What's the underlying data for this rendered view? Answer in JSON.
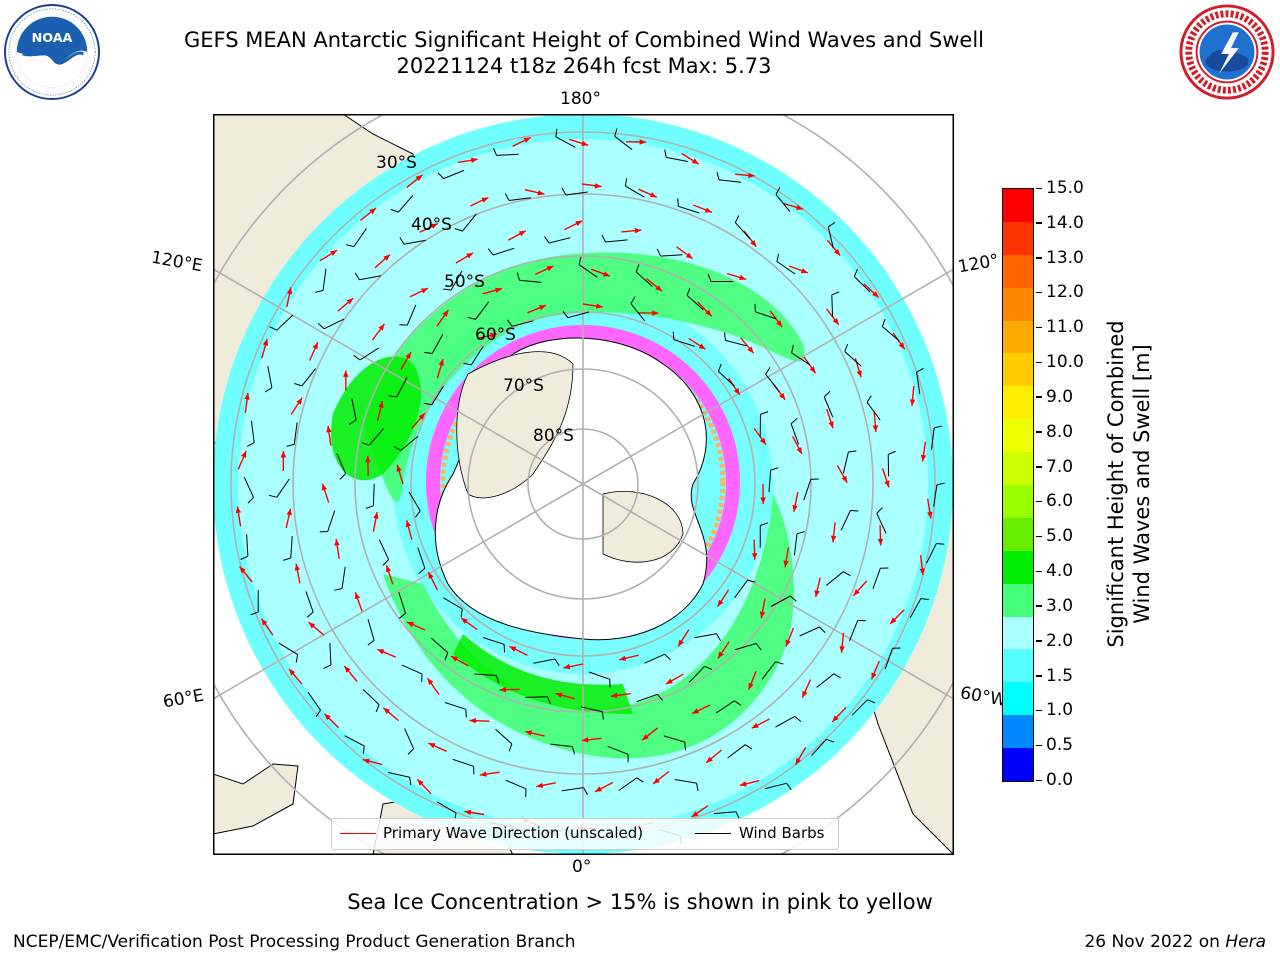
{
  "header": {
    "title_line1": "GEFS MEAN Antarctic Significant Height of Combined Wind Waves and Swell",
    "title_line2": "20221124 t18z 264h fcst   Max: 5.73"
  },
  "logos": {
    "noaa": {
      "text": "NOAA",
      "ring_text": "NATIONAL OCEANIC AND ATMOSPHERIC ADMINISTRATION · U.S. DEPARTMENT OF COMMERCE"
    },
    "nws": {
      "ring_text": "NATIONAL WEATHER SERVICE"
    }
  },
  "map": {
    "projection": "south-polar-stereographic",
    "longitude_labels": {
      "top": "180°",
      "bottom": "0°",
      "left_upper": "120°E",
      "left_lower": "60°E",
      "right_upper": "120°",
      "right_lower": "60°W"
    },
    "latitude_labels": [
      "30°S",
      "40°S",
      "50°S",
      "60°S",
      "70°S",
      "80°S"
    ],
    "land_color": "#efecdc",
    "ocean_color": "#ffffff",
    "grid_color": "#b0b0b0",
    "ice_colors": [
      "#ff66ff",
      "#e040e0",
      "#ffb060",
      "#ffe060"
    ]
  },
  "legend": {
    "wave_label": "Primary Wave Direction (unscaled)",
    "wave_color": "#ff0000",
    "barb_label": "Wind Barbs",
    "barb_color": "#000000"
  },
  "colorbar": {
    "title_line1": "Significant Height of Combined",
    "title_line2": "Wind Waves and Swell [m]",
    "ticks": [
      "15.0",
      "14.0",
      "13.0",
      "12.0",
      "11.0",
      "10.0",
      "9.0",
      "8.0",
      "7.0",
      "6.0",
      "5.0",
      "4.0",
      "3.0",
      "2.0",
      "1.5",
      "1.0",
      "0.5",
      "0.0"
    ],
    "colors": [
      "#ff0000",
      "#ff3300",
      "#ff6600",
      "#ff8800",
      "#ffaa00",
      "#ffcc00",
      "#ffee00",
      "#eeff00",
      "#ccff00",
      "#99ff00",
      "#66ee00",
      "#00ee00",
      "#44ff77",
      "#aaffff",
      "#55ffff",
      "#00ffff",
      "#0088ff",
      "#0000ff"
    ]
  },
  "notes": {
    "sea_ice": "Sea Ice Concentration > 15% is shown in pink to yellow"
  },
  "footer": {
    "left": "NCEP/EMC/Verification Post Processing Product Generation Branch",
    "right_prefix": "26 Nov 2022 on",
    "right_host": "Hera"
  }
}
